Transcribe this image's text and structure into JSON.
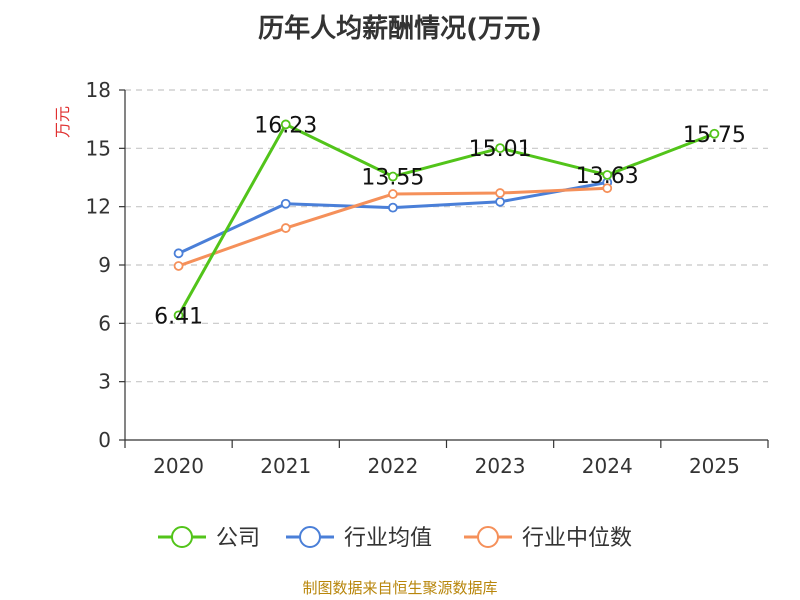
{
  "chart_data": {
    "type": "line",
    "title": "历年人均薪酬情况(万元)",
    "ylabel": "万元",
    "xlabel": "",
    "categories": [
      "2020",
      "2021",
      "2022",
      "2023",
      "2024",
      "2025"
    ],
    "ylim": [
      0,
      18
    ],
    "yticks": [
      0,
      3,
      6,
      9,
      12,
      15,
      18
    ],
    "grid": true,
    "legend_position": "bottom",
    "series": [
      {
        "name": "公司",
        "color": "#52c41a",
        "values": [
          6.41,
          16.23,
          13.55,
          15.01,
          13.63,
          15.75
        ],
        "labels": [
          "6.41",
          "16.23",
          "13.55",
          "15.01",
          "13.63",
          "15.75"
        ]
      },
      {
        "name": "行业均值",
        "color": "#4a7fd8",
        "values": [
          9.6,
          12.15,
          11.95,
          12.25,
          13.25,
          null
        ]
      },
      {
        "name": "行业中位数",
        "color": "#f5905a",
        "values": [
          8.95,
          10.9,
          12.65,
          12.7,
          12.95,
          null
        ]
      }
    ]
  },
  "footer": {
    "source": "制图数据来自恒生聚源数据库"
  }
}
